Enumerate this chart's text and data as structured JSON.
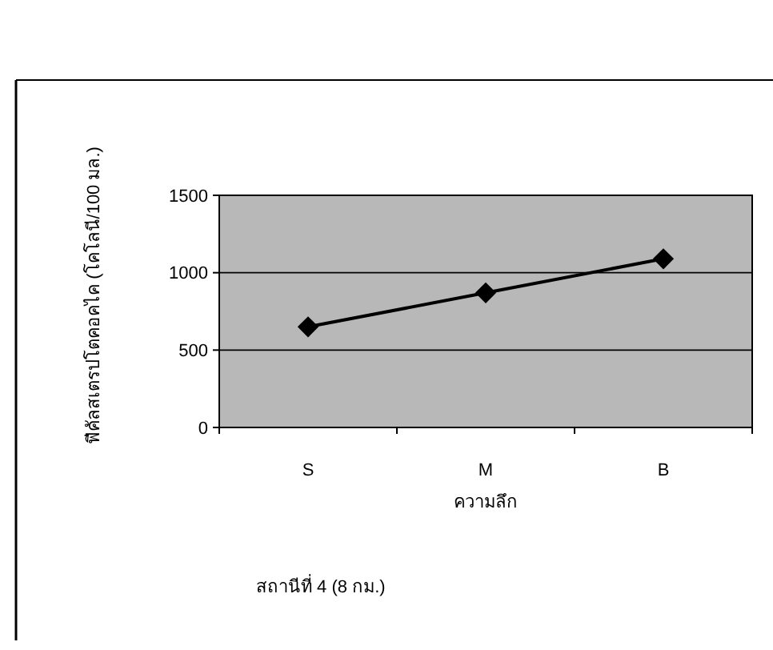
{
  "chart_data": {
    "type": "line",
    "ylabel": "ฟีคัลสเตรปโตคอคไค (โคโลนี/100 มล.)",
    "xlabel": "ความลึก",
    "categories": [
      "S",
      "M",
      "B"
    ],
    "series": [
      {
        "color": "#000000",
        "values": [
          650,
          870,
          1090
        ]
      }
    ],
    "ylim": [
      0,
      1500
    ],
    "yticks": [
      0,
      500,
      1000,
      1500
    ],
    "grid": "y",
    "marker": "diamond",
    "line_style": "solid",
    "annotations": [
      "สถานีที่ 4 (8 กม.)"
    ]
  }
}
